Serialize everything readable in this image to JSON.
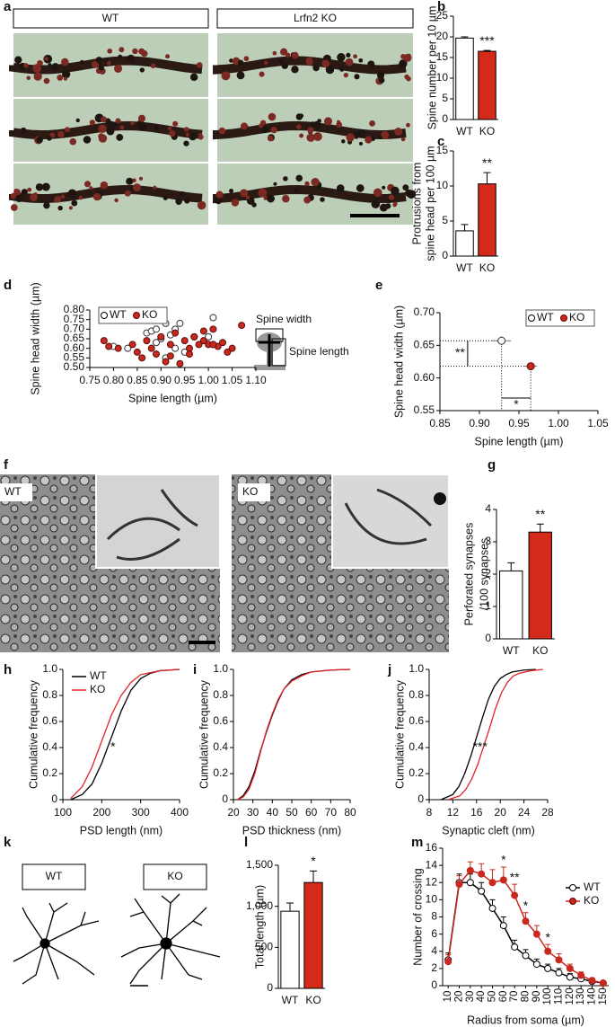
{
  "figures": [
    {
      "panel": "a",
      "labels": [
        "WT",
        "Lrfn2 KO"
      ]
    },
    {
      "panel": "f",
      "labels": [
        "WT",
        "KO"
      ]
    },
    {
      "panel": "k",
      "labels": [
        "WT",
        "KO"
      ]
    }
  ],
  "chart_data": [
    {
      "panel": "b",
      "type": "bar",
      "ylabel": [
        "Spine number per 10 µm"
      ],
      "categories": [
        "WT",
        "KO"
      ],
      "values": [
        19.7,
        16.5
      ],
      "errors": [
        0.3,
        0.2
      ],
      "colors": [
        "#ffffff",
        "#d42a1a"
      ],
      "ylim": [
        0,
        25
      ],
      "yticks": [
        0,
        5,
        10,
        15,
        20,
        25
      ],
      "significance": "***"
    },
    {
      "panel": "c",
      "type": "bar",
      "ylabel": [
        "Protrusions from",
        "spine head per 100 µm"
      ],
      "categories": [
        "WT",
        "KO"
      ],
      "values": [
        3.6,
        10.3
      ],
      "errors": [
        0.9,
        1.6
      ],
      "colors": [
        "#ffffff",
        "#d42a1a"
      ],
      "ylim": [
        0,
        15
      ],
      "yticks": [
        0,
        5,
        10,
        15
      ],
      "significance": "**"
    },
    {
      "panel": "d",
      "type": "scatter",
      "xlabel": "Spine length (µm)",
      "ylabel": [
        "Spine head width (µm)"
      ],
      "diagram_labels": [
        "Spine width",
        "Spine length"
      ],
      "xlim": [
        0.75,
        1.1
      ],
      "xticks": [
        0.75,
        {
          "value": 0.8,
          "label": "0.80"
        },
        0.85,
        {
          "value": 0.9,
          "label": "0.90"
        },
        0.95,
        {
          "value": 1,
          "label": "1.00"
        },
        1.05,
        {
          "value": 1.1,
          "label": "1.10"
        }
      ],
      "ylim": [
        0.5,
        0.8
      ],
      "yticks": [
        {
          "value": 0.5,
          "label": "0.50"
        },
        0.55,
        {
          "value": 0.6,
          "label": "0.60"
        },
        0.65,
        {
          "value": 0.7,
          "label": "0.70"
        },
        0.75,
        {
          "value": 0.8,
          "label": "0.80"
        }
      ],
      "series": [
        {
          "name": "WT",
          "color": "#ffffff",
          "x": [
            0.8,
            0.83,
            0.87,
            0.88,
            0.89,
            0.9,
            0.91,
            0.92,
            0.93,
            0.93,
            0.94,
            0.95,
            0.97,
            1.0,
            1.01,
            1.01,
            0.91,
            0.89
          ],
          "values": [
            0.61,
            0.6,
            0.68,
            0.69,
            0.7,
            0.65,
            0.73,
            0.67,
            0.7,
            0.6,
            0.73,
            0.58,
            0.66,
            0.66,
            0.76,
            0.62,
            0.55,
            0.63
          ]
        },
        {
          "name": "KO",
          "color": "#c8281e",
          "x": [
            0.78,
            0.79,
            0.81,
            0.84,
            0.85,
            0.86,
            0.87,
            0.88,
            0.89,
            0.9,
            0.91,
            0.92,
            0.93,
            0.94,
            0.95,
            0.96,
            0.97,
            0.98,
            0.99,
            1.0,
            1.01,
            1.02,
            1.03,
            1.04,
            1.05,
            1.07,
            0.96,
            0.99,
            1.01,
            0.92
          ],
          "values": [
            0.64,
            0.61,
            0.6,
            0.62,
            0.58,
            0.55,
            0.64,
            0.6,
            0.57,
            0.66,
            0.53,
            0.62,
            0.68,
            0.52,
            0.64,
            0.6,
            0.66,
            0.62,
            0.64,
            0.62,
            0.7,
            0.61,
            0.63,
            0.58,
            0.6,
            0.72,
            0.57,
            0.69,
            0.62,
            0.56
          ]
        }
      ]
    },
    {
      "panel": "e",
      "type": "scatter",
      "xlabel": "Spine length (µm)",
      "ylabel": [
        "Spine head width (µm)"
      ],
      "annotations": [
        "**",
        "*"
      ],
      "xlim": [
        0.85,
        1.05
      ],
      "xticks": [
        0.85,
        {
          "value": 0.9,
          "label": "0.90"
        },
        0.95,
        {
          "value": 1,
          "label": "1.00"
        },
        1.05
      ],
      "ylim": [
        0.55,
        0.7
      ],
      "yticks": [
        0.55,
        {
          "value": 0.6,
          "label": "0.60"
        },
        0.65,
        {
          "value": 0.7,
          "label": "0.70"
        }
      ],
      "series": [
        {
          "name": "WT",
          "color": "#ffffff",
          "x": [
            0.928
          ],
          "values": [
            0.657
          ],
          "xerr": [
            0.012
          ],
          "yerr": [
            0.007
          ]
        },
        {
          "name": "KO",
          "color": "#c8281e",
          "x": [
            0.965
          ],
          "values": [
            0.618
          ],
          "xerr": [
            0.008
          ],
          "yerr": [
            0.004
          ]
        }
      ]
    },
    {
      "panel": "g",
      "type": "bar",
      "ylabel": [
        "Perforated synapses",
        "/100 synapses"
      ],
      "categories": [
        "WT",
        "KO"
      ],
      "values": [
        2.1,
        3.3
      ],
      "errors": [
        0.25,
        0.25
      ],
      "colors": [
        "#ffffff",
        "#d42a1a"
      ],
      "ylim": [
        0,
        4
      ],
      "yticks": [
        0,
        1,
        2,
        3,
        4
      ],
      "significance": "**"
    },
    {
      "panel": "h",
      "type": "line",
      "xlabel": "PSD length (nm)",
      "ylabel": [
        "Cumulative frequency"
      ],
      "annotation": "*",
      "legend": true,
      "xlim": [
        100,
        400
      ],
      "xticks": [
        100,
        200,
        300,
        400
      ],
      "ylim": [
        0,
        1
      ],
      "yticks": [
        0,
        0.2,
        0.4,
        0.6,
        0.8,
        {
          "value": 1,
          "label": "1.0"
        }
      ],
      "series": [
        {
          "name": "WT",
          "color": "#000000",
          "x": [
            120,
            150,
            175,
            200,
            225,
            250,
            275,
            300,
            325,
            350,
            400
          ],
          "values": [
            0,
            0.04,
            0.12,
            0.28,
            0.48,
            0.68,
            0.84,
            0.93,
            0.97,
            0.99,
            1
          ]
        },
        {
          "name": "KO",
          "color": "#e0242a",
          "x": [
            120,
            150,
            175,
            200,
            225,
            250,
            275,
            300,
            350,
            400
          ],
          "values": [
            0.01,
            0.1,
            0.25,
            0.45,
            0.65,
            0.8,
            0.9,
            0.96,
            0.99,
            1
          ]
        }
      ]
    },
    {
      "panel": "i",
      "type": "line",
      "xlabel": "PSD thickness (nm)",
      "ylabel": [
        "Cumulative frequency"
      ],
      "xlim": [
        20,
        80
      ],
      "xticks": [
        20,
        30,
        40,
        50,
        60,
        70,
        80
      ],
      "ylim": [
        0,
        1
      ],
      "yticks": [
        0,
        0.2,
        0.4,
        0.6,
        0.8,
        {
          "value": 1,
          "label": "1.0"
        }
      ],
      "series": [
        {
          "name": "WT",
          "color": "#000000",
          "x": [
            22,
            25,
            28,
            31,
            34,
            37,
            40,
            43,
            46,
            50,
            55,
            60,
            70,
            80
          ],
          "values": [
            0,
            0.03,
            0.1,
            0.22,
            0.38,
            0.52,
            0.65,
            0.76,
            0.85,
            0.92,
            0.96,
            0.98,
            0.995,
            1
          ]
        },
        {
          "name": "KO",
          "color": "#e0242a",
          "x": [
            22,
            25,
            28,
            31,
            34,
            37,
            40,
            43,
            46,
            50,
            55,
            60,
            70,
            80
          ],
          "values": [
            0,
            0.02,
            0.08,
            0.2,
            0.37,
            0.53,
            0.66,
            0.77,
            0.85,
            0.91,
            0.95,
            0.98,
            0.995,
            1
          ]
        }
      ]
    },
    {
      "panel": "j",
      "type": "line",
      "xlabel": "Synaptic cleft (nm)",
      "ylabel": [
        "Cumulative frequency"
      ],
      "annotation": "***",
      "xlim": [
        8,
        28
      ],
      "xticks": [
        8,
        12,
        16,
        20,
        24,
        28
      ],
      "ylim": [
        0,
        1
      ],
      "yticks": [
        0,
        0.2,
        0.4,
        0.6,
        0.8,
        {
          "value": 1,
          "label": "1.0"
        }
      ],
      "series": [
        {
          "name": "WT",
          "color": "#000000",
          "x": [
            10,
            12,
            13,
            14,
            15,
            16,
            17,
            18,
            19,
            20,
            21,
            22,
            24,
            26
          ],
          "values": [
            0,
            0.04,
            0.1,
            0.2,
            0.33,
            0.48,
            0.63,
            0.77,
            0.87,
            0.93,
            0.96,
            0.98,
            0.995,
            1
          ]
        },
        {
          "name": "KO",
          "color": "#e0242a",
          "x": [
            11.2,
            13.2,
            14.2,
            15.2,
            16.2,
            17.2,
            18.2,
            19.2,
            20.2,
            21.2,
            22.2,
            23.2,
            25.2,
            27.2
          ],
          "values": [
            0,
            0.03,
            0.08,
            0.16,
            0.27,
            0.41,
            0.55,
            0.7,
            0.82,
            0.9,
            0.95,
            0.97,
            0.99,
            1
          ]
        }
      ]
    },
    {
      "panel": "l",
      "type": "bar",
      "ylabel": [
        "Total length (µm)"
      ],
      "categories": [
        "WT",
        "KO"
      ],
      "values": [
        940,
        1290
      ],
      "errors": [
        100,
        140
      ],
      "colors": [
        "#ffffff",
        "#d42a1a"
      ],
      "ylim": [
        0,
        1500
      ],
      "yticks": [
        0,
        500,
        {
          "value": 1000,
          "label": "1,000"
        },
        {
          "value": 1500,
          "label": "1,500"
        }
      ],
      "significance": "*"
    },
    {
      "panel": "m",
      "type": "line",
      "xlabel": "Radius from soma (µm)",
      "ylabel": [
        "Number of crossing"
      ],
      "legend": true,
      "categories": [
        "10",
        "20",
        "30",
        "40",
        "50",
        "60",
        "70",
        "80",
        "90",
        "100",
        "110",
        "120",
        "130",
        "140",
        "150"
      ],
      "ylim": [
        0,
        16
      ],
      "yticks": [
        0,
        2,
        4,
        6,
        8,
        10,
        12,
        14,
        16
      ],
      "annotations": [
        {
          "category": "60",
          "text": "*"
        },
        {
          "category": "70",
          "text": "**"
        },
        {
          "category": "80",
          "text": "*"
        },
        {
          "category": "100",
          "text": "*"
        }
      ],
      "series": [
        {
          "name": "WT",
          "color": "#ffffff",
          "values": [
            3,
            12,
            12,
            11,
            9,
            7,
            4.5,
            3.5,
            2.5,
            2,
            1.5,
            1,
            0.8,
            0.5,
            0.3
          ],
          "errors": [
            0.8,
            1,
            1,
            1,
            1,
            1,
            0.8,
            0.7,
            0.6,
            0.5,
            0.5,
            0.4,
            0.3,
            0.3,
            0.2
          ]
        },
        {
          "name": "KO",
          "color": "#c8281e",
          "values": [
            2.8,
            11.8,
            13.4,
            13,
            12,
            12.3,
            10.5,
            7.5,
            6,
            4,
            3,
            2,
            1.2,
            0.6,
            0.3
          ],
          "errors": [
            0.8,
            1,
            1,
            1.2,
            1.5,
            1.5,
            1.3,
            1,
            1,
            0.8,
            0.7,
            0.5,
            0.4,
            0.3,
            0.2
          ]
        }
      ]
    }
  ]
}
